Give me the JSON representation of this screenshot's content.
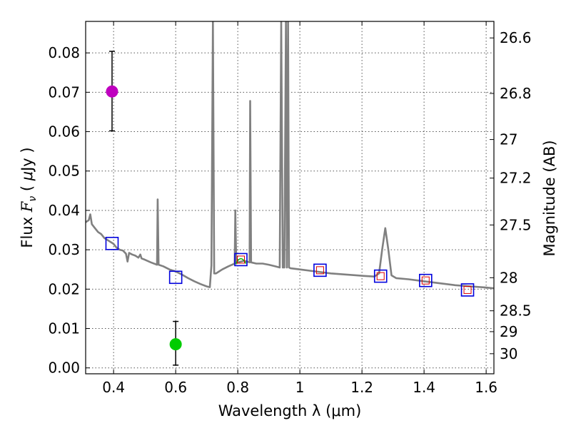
{
  "chart_data": {
    "type": "scatter",
    "xlabel": "Wavelength  λ (μm)",
    "ylabel_parts": [
      "Flux ",
      "F",
      "ν",
      " ( ",
      "μ",
      "Jy )"
    ],
    "y2label": "Magnitude (AB)",
    "xlim": [
      0.31,
      1.625
    ],
    "ylim": [
      -0.0015,
      0.088
    ],
    "grid": true,
    "x_ticks": [
      {
        "value": 0.4,
        "label": "0.4"
      },
      {
        "value": 0.6,
        "label": "0.6"
      },
      {
        "value": 0.8,
        "label": "0.8"
      },
      {
        "value": 1.0,
        "label": "1"
      },
      {
        "value": 1.2,
        "label": "1.2"
      },
      {
        "value": 1.4,
        "label": "1.4"
      },
      {
        "value": 1.6,
        "label": "1.6"
      }
    ],
    "y_ticks": [
      {
        "value": 0.0,
        "label": "0.00"
      },
      {
        "value": 0.01,
        "label": "0.01"
      },
      {
        "value": 0.02,
        "label": "0.02"
      },
      {
        "value": 0.03,
        "label": "0.03"
      },
      {
        "value": 0.04,
        "label": "0.04"
      },
      {
        "value": 0.05,
        "label": "0.05"
      },
      {
        "value": 0.06,
        "label": "0.06"
      },
      {
        "value": 0.07,
        "label": "0.07"
      },
      {
        "value": 0.08,
        "label": "0.08"
      }
    ],
    "mag_ticks": [
      {
        "flux": 0.0838,
        "label": "26.6"
      },
      {
        "flux": 0.0697,
        "label": "26.8"
      },
      {
        "flux": 0.058,
        "label": "27"
      },
      {
        "flux": 0.0482,
        "label": "27.2"
      },
      {
        "flux": 0.0363,
        "label": "27.5"
      },
      {
        "flux": 0.0229,
        "label": "28"
      },
      {
        "flux": 0.0145,
        "label": "28.5"
      },
      {
        "flux": 0.0092,
        "label": "29"
      },
      {
        "flux": 0.0036,
        "label": "30"
      }
    ],
    "model_spectrum": {
      "color": "#808080",
      "points": [
        [
          0.31,
          0.037
        ],
        [
          0.32,
          0.0375
        ],
        [
          0.325,
          0.039
        ],
        [
          0.33,
          0.0365
        ],
        [
          0.34,
          0.0355
        ],
        [
          0.35,
          0.0345
        ],
        [
          0.36,
          0.034
        ],
        [
          0.37,
          0.033
        ],
        [
          0.38,
          0.0325
        ],
        [
          0.39,
          0.032
        ],
        [
          0.4,
          0.0315
        ],
        [
          0.41,
          0.0305
        ],
        [
          0.42,
          0.03
        ],
        [
          0.43,
          0.0298
        ],
        [
          0.44,
          0.029
        ],
        [
          0.445,
          0.027
        ],
        [
          0.45,
          0.0292
        ],
        [
          0.46,
          0.0288
        ],
        [
          0.47,
          0.0285
        ],
        [
          0.48,
          0.028
        ],
        [
          0.486,
          0.0288
        ],
        [
          0.49,
          0.0278
        ],
        [
          0.5,
          0.0275
        ],
        [
          0.52,
          0.0268
        ],
        [
          0.54,
          0.0262
        ],
        [
          0.542,
          0.0428
        ],
        [
          0.545,
          0.0262
        ],
        [
          0.56,
          0.0258
        ],
        [
          0.58,
          0.025
        ],
        [
          0.6,
          0.0245
        ],
        [
          0.62,
          0.0237
        ],
        [
          0.64,
          0.0228
        ],
        [
          0.66,
          0.022
        ],
        [
          0.68,
          0.0213
        ],
        [
          0.7,
          0.0207
        ],
        [
          0.71,
          0.0205
        ],
        [
          0.715,
          0.026
        ],
        [
          0.72,
          0.088
        ],
        [
          0.724,
          0.024
        ],
        [
          0.73,
          0.024
        ],
        [
          0.74,
          0.0245
        ],
        [
          0.75,
          0.025
        ],
        [
          0.77,
          0.0258
        ],
        [
          0.79,
          0.0265
        ],
        [
          0.792,
          0.04
        ],
        [
          0.795,
          0.0265
        ],
        [
          0.8,
          0.0268
        ],
        [
          0.81,
          0.027
        ],
        [
          0.82,
          0.0272
        ],
        [
          0.83,
          0.027
        ],
        [
          0.838,
          0.0268
        ],
        [
          0.84,
          0.0678
        ],
        [
          0.843,
          0.0268
        ],
        [
          0.86,
          0.0265
        ],
        [
          0.88,
          0.0265
        ],
        [
          0.9,
          0.0262
        ],
        [
          0.92,
          0.0258
        ],
        [
          0.935,
          0.0255
        ],
        [
          0.94,
          0.088
        ],
        [
          0.945,
          0.0255
        ],
        [
          0.95,
          0.0255
        ],
        [
          0.955,
          0.088
        ],
        [
          0.958,
          0.0255
        ],
        [
          0.962,
          0.088
        ],
        [
          0.965,
          0.0255
        ],
        [
          0.97,
          0.0253
        ],
        [
          1.0,
          0.025
        ],
        [
          1.05,
          0.0245
        ],
        [
          1.1,
          0.024
        ],
        [
          1.15,
          0.0237
        ],
        [
          1.2,
          0.0234
        ],
        [
          1.24,
          0.0232
        ],
        [
          1.255,
          0.024
        ],
        [
          1.265,
          0.03
        ],
        [
          1.275,
          0.0355
        ],
        [
          1.285,
          0.03
        ],
        [
          1.295,
          0.0235
        ],
        [
          1.31,
          0.0228
        ],
        [
          1.35,
          0.0225
        ],
        [
          1.4,
          0.022
        ],
        [
          1.45,
          0.0215
        ],
        [
          1.5,
          0.021
        ],
        [
          1.55,
          0.0207
        ],
        [
          1.6,
          0.0204
        ],
        [
          1.625,
          0.0202
        ]
      ]
    },
    "model_photometry": {
      "marker": "open-square",
      "color": "#0000dd",
      "points": [
        [
          0.395,
          0.0316
        ],
        [
          0.6,
          0.023
        ],
        [
          0.81,
          0.0275
        ],
        [
          1.065,
          0.0248
        ],
        [
          1.26,
          0.0233
        ],
        [
          1.405,
          0.0222
        ],
        [
          1.54,
          0.0198
        ]
      ]
    },
    "observed_bands": {
      "marker": "small-open-square",
      "color": "#dd0000",
      "points": [
        [
          0.81,
          0.0275
        ],
        [
          1.065,
          0.0248
        ],
        [
          1.26,
          0.0233
        ],
        [
          1.405,
          0.0222
        ],
        [
          1.54,
          0.0198
        ]
      ]
    },
    "filter_curves": {
      "color": "#00bb00",
      "points": [
        [
          0.81,
          0.0272
        ]
      ]
    },
    "measurements": [
      {
        "name": "purple-point",
        "x": 0.395,
        "y": 0.0702,
        "ylo": 0.0602,
        "yhi": 0.0804,
        "color": "#bf00bf"
      },
      {
        "name": "green-point",
        "x": 0.6,
        "y": 0.006,
        "ylo": 0.0007,
        "yhi": 0.0118,
        "color": "#00cc00"
      }
    ]
  }
}
